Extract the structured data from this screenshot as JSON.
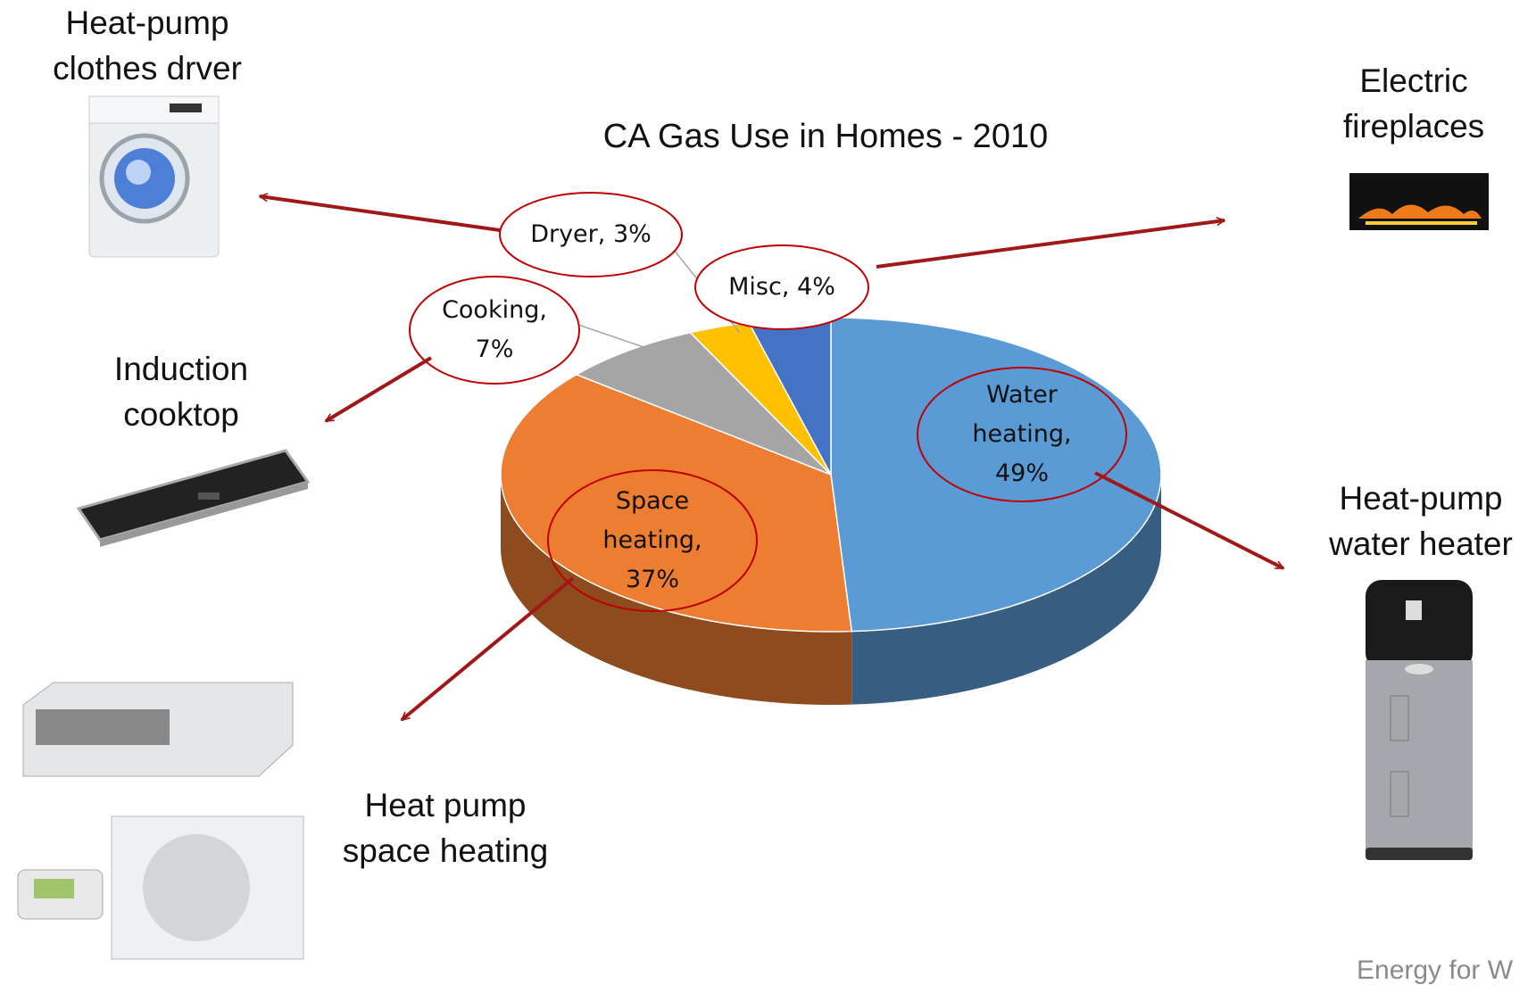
{
  "chart_data": {
    "type": "pie",
    "title": "CA Gas Use in Homes - 2010",
    "categories": [
      "Water heating,",
      "Space heating,",
      "Cooking,",
      "Dryer,",
      "Misc,"
    ],
    "values": [
      49,
      37,
      7,
      3,
      4
    ],
    "value_labels": [
      "49%",
      "37%",
      "7%",
      "3%",
      "4%"
    ],
    "colors": [
      "#5b9bd5",
      "#ed7d31",
      "#a5a5a5",
      "#ffc000",
      "#4472c4"
    ],
    "annotations": [
      [
        "Heat-pump",
        "clothes drver"
      ],
      [
        "Electric",
        "fireplaces"
      ],
      [
        "Induction",
        "cooktop"
      ],
      [
        "Heat-pump",
        "water heater"
      ],
      [
        "Heat pump",
        "space heating"
      ],
      [
        "Energy for W"
      ]
    ]
  }
}
